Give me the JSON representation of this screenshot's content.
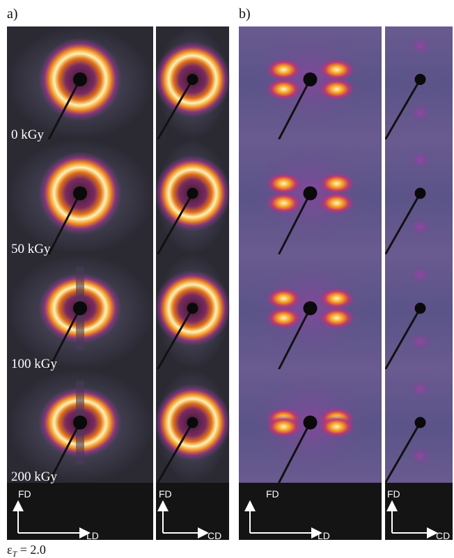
{
  "panels": [
    {
      "label": "a)",
      "rows": [
        "0 kGy",
        "50 kGy",
        "100 kGy",
        "200 kGy"
      ],
      "axes": [
        {
          "vertical": "FD",
          "horizontal": "LD"
        },
        {
          "vertical": "FD",
          "horizontal": "CD"
        }
      ]
    },
    {
      "label": "b)",
      "axes": [
        {
          "vertical": "FD",
          "horizontal": "LD"
        },
        {
          "vertical": "FD",
          "horizontal": "CD"
        }
      ]
    }
  ],
  "caption": {
    "symbol": "ε",
    "subscript": "T",
    "rest": " = 2.0"
  }
}
